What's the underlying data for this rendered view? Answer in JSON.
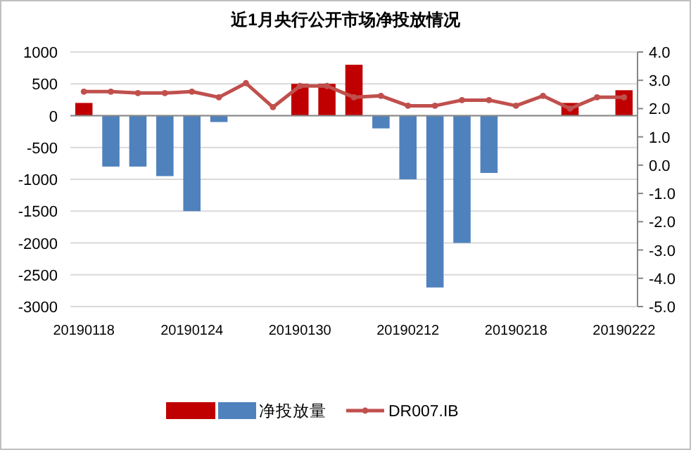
{
  "chart_data": {
    "type": "bar",
    "title": "近1月央行公开市场净投放情况",
    "categories": [
      "20190118",
      null,
      null,
      null,
      "20190124",
      null,
      null,
      null,
      "20190130",
      null,
      null,
      null,
      "20190212",
      null,
      null,
      null,
      "20190218",
      null,
      null,
      null,
      "20190222"
    ],
    "series": [
      {
        "name": "净投放量",
        "colors": [
          "#c00000",
          "#4f81bd",
          "#4f81bd",
          "#4f81bd",
          "#4f81bd",
          "#4f81bd",
          null,
          null,
          "#c00000",
          "#c00000",
          "#c00000",
          "#4f81bd",
          "#4f81bd",
          "#4f81bd",
          "#4f81bd",
          "#4f81bd",
          null,
          null,
          "#c00000",
          null,
          "#c00000"
        ],
        "values": [
          200,
          -800,
          -800,
          -950,
          -1500,
          -100,
          null,
          null,
          500,
          500,
          800,
          -200,
          -1000,
          -2700,
          -2000,
          -900,
          null,
          null,
          200,
          null,
          400
        ]
      },
      {
        "name": "DR007.IB",
        "type": "line",
        "axis": "y2",
        "color": "#c0504d",
        "values": [
          2.6,
          2.6,
          2.55,
          2.55,
          2.6,
          2.4,
          2.9,
          2.05,
          2.8,
          2.8,
          2.4,
          2.45,
          2.1,
          2.1,
          2.3,
          2.3,
          2.1,
          2.45,
          2.0,
          2.4,
          2.4
        ]
      }
    ],
    "ylim": [
      -3000,
      1000
    ],
    "yticks": [
      -3000,
      -2500,
      -2000,
      -1500,
      -1000,
      -500,
      0,
      500,
      1000
    ],
    "y2lim": [
      -5,
      4
    ],
    "y2ticks": [
      {
        "value": -5,
        "label": "-5.0"
      },
      {
        "value": -4,
        "label": "-4.0"
      },
      {
        "value": -3,
        "label": "-3.0"
      },
      {
        "value": -2,
        "label": "-2.0"
      },
      {
        "value": -1,
        "label": "-1.0"
      },
      {
        "value": 0,
        "label": "0.0"
      },
      {
        "value": 1,
        "label": "1.0"
      },
      {
        "value": 2,
        "label": "2.0"
      },
      {
        "value": 3,
        "label": "3.0"
      },
      {
        "value": 4,
        "label": "4.0"
      }
    ],
    "grid": "y",
    "legend": "bottom",
    "marker": "circle",
    "line_style": "solid"
  }
}
